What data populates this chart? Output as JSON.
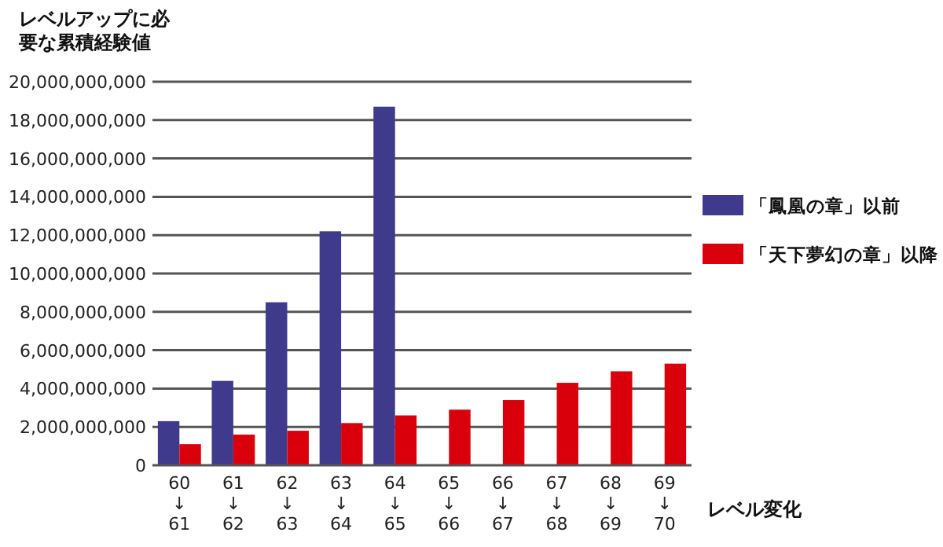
{
  "chart_data": {
    "type": "bar",
    "ylabel": "レベルアップに必要な累積経験値",
    "xlabel": "レベル変化",
    "categories": [
      "60\n↓\n61",
      "61\n↓\n62",
      "62\n↓\n63",
      "63\n↓\n64",
      "64\n↓\n65",
      "65\n↓\n66",
      "66\n↓\n67",
      "67\n↓\n68",
      "68\n↓\n69",
      "69\n↓\n70"
    ],
    "series": [
      {
        "name": "「鳳凰の章」以前",
        "color": "#3f3a8c",
        "values": [
          2300000000,
          4400000000,
          8500000000,
          12200000000,
          18700000000,
          null,
          null,
          null,
          null,
          null
        ]
      },
      {
        "name": "「天下夢幻の章」以降",
        "color": "#d9000b",
        "values": [
          1100000000,
          1600000000,
          1800000000,
          2200000000,
          2600000000,
          2900000000,
          3400000000,
          4300000000,
          4900000000,
          5300000000
        ]
      }
    ],
    "ylim": [
      0,
      20000000000
    ],
    "yticks": [
      0,
      {
        "value": 2000000000,
        "label": "2,000,000,000"
      },
      {
        "value": 4000000000,
        "label": "4,000,000,000"
      },
      {
        "value": 6000000000,
        "label": "6,000,000,000"
      },
      {
        "value": 8000000000,
        "label": "8,000,000,000"
      },
      {
        "value": 10000000000,
        "label": "10,000,000,000"
      },
      {
        "value": 12000000000,
        "label": "12,000,000,000"
      },
      {
        "value": 14000000000,
        "label": "14,000,000,000"
      },
      {
        "value": 16000000000,
        "label": "16,000,000,000"
      },
      {
        "value": 18000000000,
        "label": "18,000,000,000"
      },
      {
        "value": 20000000000,
        "label": "20,000,000,000"
      }
    ],
    "grid": "y",
    "legend": "right"
  }
}
